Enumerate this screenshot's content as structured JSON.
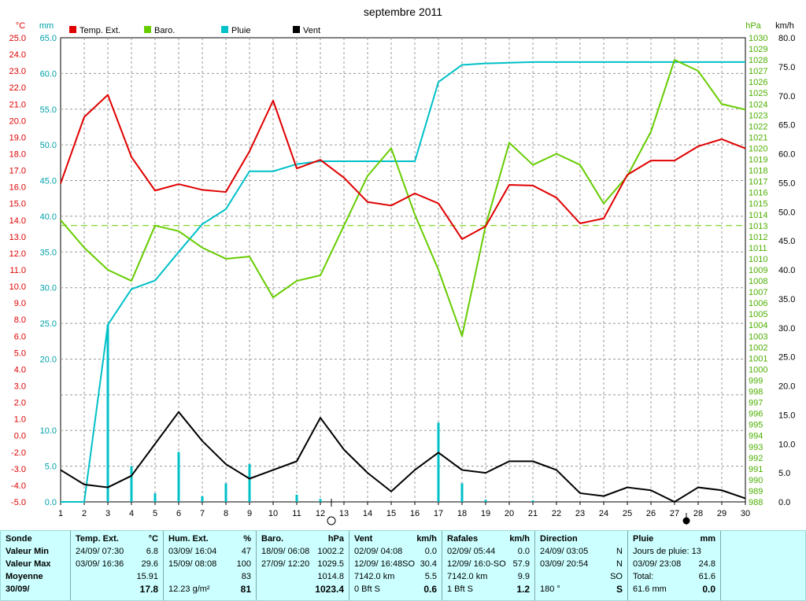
{
  "chart_data": {
    "type": "line",
    "title": "septembre 2011",
    "x": [
      1,
      2,
      3,
      4,
      5,
      6,
      7,
      8,
      9,
      10,
      11,
      12,
      13,
      14,
      15,
      16,
      17,
      18,
      19,
      20,
      21,
      22,
      23,
      24,
      25,
      26,
      27,
      28,
      29,
      30
    ],
    "left_axis": {
      "unit": "°C",
      "ticks": [
        "25.0",
        "24.0",
        "23.0",
        "22.0",
        "21.0",
        "20.0",
        "19.0",
        "18.0",
        "17.0",
        "16.0",
        "15.0",
        "14.0",
        "13.0",
        "12.0",
        "11.0",
        "10.0",
        "9.0",
        "8.0",
        "6.0",
        "5.0",
        "4.0",
        "3.0",
        "2.0",
        "1.0",
        "0.0",
        "-2.0",
        "-3.0",
        "-4.0",
        "-5.0"
      ]
    },
    "rain_axis": {
      "unit": "mm",
      "ticks": [
        "65.0",
        "60.0",
        "55.0",
        "50.0",
        "45.0",
        "40.0",
        "35.0",
        "30.0",
        "25.0",
        "20.0",
        "10.0",
        "5.0",
        "0.0"
      ]
    },
    "baro_axis": {
      "unit": "hPa",
      "ticks": [
        "1030",
        "1029",
        "1028",
        "1027",
        "1026",
        "1025",
        "1024",
        "1023",
        "1022",
        "1021",
        "1020",
        "1019",
        "1018",
        "1017",
        "1016",
        "1015",
        "1014",
        "1013",
        "1012",
        "1011",
        "1010",
        "1009",
        "1008",
        "1007",
        "1006",
        "1005",
        "1004",
        "1003",
        "1002",
        "1001",
        "1000",
        "999",
        "998",
        "997",
        "996",
        "995",
        "994",
        "993",
        "992",
        "991",
        "990",
        "989",
        "988"
      ]
    },
    "wind_axis": {
      "unit": "km/h",
      "ticks": [
        "80.0",
        "75.0",
        "70.0",
        "65.0",
        "60.0",
        "55.0",
        "50.0",
        "45.0",
        "40.0",
        "35.0",
        "30.0",
        "25.0",
        "20.0",
        "15.0",
        "10.0",
        "5.0",
        "0.0"
      ]
    },
    "legend": [
      {
        "name": "Temp. Ext.",
        "color": "#e00000"
      },
      {
        "name": "Baro.",
        "color": "#66cc00"
      },
      {
        "name": "Pluie",
        "color": "#00c0c8"
      },
      {
        "name": "Vent",
        "color": "#000000"
      }
    ],
    "series": [
      {
        "name": "Temp. Ext.",
        "color": "#e00000",
        "y_plot": [
          44.6,
          53.9,
          57.0,
          48.3,
          43.6,
          44.5,
          43.7,
          43.4,
          49.1,
          56.2,
          46.7,
          47.9,
          45.4,
          42.0,
          41.5,
          43.2,
          41.8,
          36.8,
          38.6,
          44.4,
          44.3,
          42.6,
          39.0,
          39.7,
          45.8,
          47.8,
          47.8,
          49.8,
          50.8,
          49.5
        ]
      },
      {
        "name": "Baro.",
        "color": "#66cc00",
        "y_baro": [
          1013.5,
          1011.0,
          1009.0,
          1008.0,
          1013.0,
          1012.5,
          1011.0,
          1010.0,
          1010.2,
          1006.5,
          1008.0,
          1008.5,
          1013.0,
          1017.5,
          1020.0,
          1014.0,
          1009.0,
          1003.0,
          1013.0,
          1020.5,
          1018.5,
          1019.5,
          1018.5,
          1015.0,
          1017.5,
          1021.5,
          1028.0,
          1027.0,
          1024.0,
          1023.5
        ]
      },
      {
        "name": "Pluie",
        "color": "#00c0c8",
        "y_mm": [
          0,
          0,
          24.8,
          29.8,
          31.0,
          35.0,
          38.9,
          41.0,
          46.3,
          46.3,
          47.3,
          47.7,
          47.7,
          47.7,
          47.7,
          47.7,
          58.8,
          61.2,
          61.4,
          61.5,
          61.6,
          61.6,
          61.6,
          61.6,
          61.6,
          61.6,
          61.6,
          61.6,
          61.6,
          61.6
        ]
      },
      {
        "name": "Vent",
        "color": "#000000",
        "y_kmh": [
          5.5,
          3.0,
          2.5,
          4.5,
          10.0,
          15.5,
          10.5,
          6.5,
          4.0,
          5.5,
          7.0,
          14.5,
          9.0,
          5.0,
          1.8,
          5.5,
          8.5,
          5.5,
          5.0,
          7.0,
          7.0,
          5.5,
          1.5,
          1.0,
          2.5,
          2.0,
          0.0,
          2.5,
          2.0,
          0.6
        ]
      }
    ],
    "rain_bars": [
      {
        "day": 3,
        "mm": 24.8
      },
      {
        "day": 4,
        "mm": 5.0
      },
      {
        "day": 5,
        "mm": 1.2
      },
      {
        "day": 6,
        "mm": 7.0
      },
      {
        "day": 7,
        "mm": 0.8
      },
      {
        "day": 8,
        "mm": 2.6
      },
      {
        "day": 9,
        "mm": 5.3
      },
      {
        "day": 11,
        "mm": 1.0
      },
      {
        "day": 12,
        "mm": 0.4
      },
      {
        "day": 17,
        "mm": 11.1
      },
      {
        "day": 18,
        "mm": 2.6
      },
      {
        "day": 19,
        "mm": 0.3
      },
      {
        "day": 21,
        "mm": 0.2
      }
    ],
    "reference_line": {
      "value_baro": 1013,
      "color": "#66cc00",
      "style": "dashed"
    }
  },
  "table": {
    "sonde": {
      "header": "Sonde",
      "rows": [
        "Valeur Min",
        "Valeur Max",
        "Moyenne",
        "30/09/"
      ]
    },
    "temp": {
      "title": "Temp. Ext.",
      "unit": "°C",
      "min": {
        "date": "24/09/",
        "time": "07:30",
        "value": "6.8"
      },
      "max": {
        "date": "03/09/",
        "time": "16:36",
        "value": "29.6"
      },
      "avg": "15.91",
      "now": "17.8"
    },
    "hum": {
      "title": "Hum. Ext.",
      "unit": "%",
      "min": {
        "date": "03/09/",
        "time": "16:04",
        "value": "47"
      },
      "max": {
        "date": "15/09/",
        "time": "08:08",
        "value": "100"
      },
      "avg": "83",
      "now_left": "12.23 g/m²",
      "now": "81"
    },
    "baro": {
      "title": "Baro.",
      "unit": "hPa",
      "min": {
        "date": "18/09/",
        "time": "06:08",
        "value": "1002.2"
      },
      "max": {
        "date": "27/09/",
        "time": "12:20",
        "value": "1029.5"
      },
      "avg": "1014.8",
      "now": "1023.4"
    },
    "vent": {
      "title": "Vent",
      "unit": "km/h",
      "min": {
        "date": "02/09/",
        "time": "04:08",
        "value": "0.0"
      },
      "max": {
        "date": "12/09/",
        "time": "16:48SO",
        "value": "30.4"
      },
      "avg_left": "7142.0 km",
      "avg": "5.5",
      "now_left": "0 Bft S",
      "now": "0.6"
    },
    "rafales": {
      "title": "Rafales",
      "unit": "km/h",
      "min": {
        "date": "02/09/",
        "time": "05:44",
        "value": "0.0"
      },
      "max": {
        "date": "12/09/",
        "time": "16:0-SO",
        "value": "57.9"
      },
      "avg_left": "7142.0 km",
      "avg": "9.9",
      "now_left": "1 Bft S",
      "now": "1.2"
    },
    "direction": {
      "title": "Direction",
      "min": {
        "date": "24/09/",
        "time": "03:05",
        "value": "N"
      },
      "max": {
        "date": "03/09/",
        "time": "20:54",
        "value": "N"
      },
      "avg": "SO",
      "now_left": "180 °",
      "now": "S"
    },
    "pluie": {
      "title": "Pluie",
      "unit": "mm",
      "row1": "Jours de pluie: 13",
      "max": {
        "date": "03/09/",
        "time": "23:08",
        "value": "24.8"
      },
      "total_label": "Total:",
      "total": "61.6",
      "now_left": "61.6 mm",
      "now": "0.0"
    }
  }
}
